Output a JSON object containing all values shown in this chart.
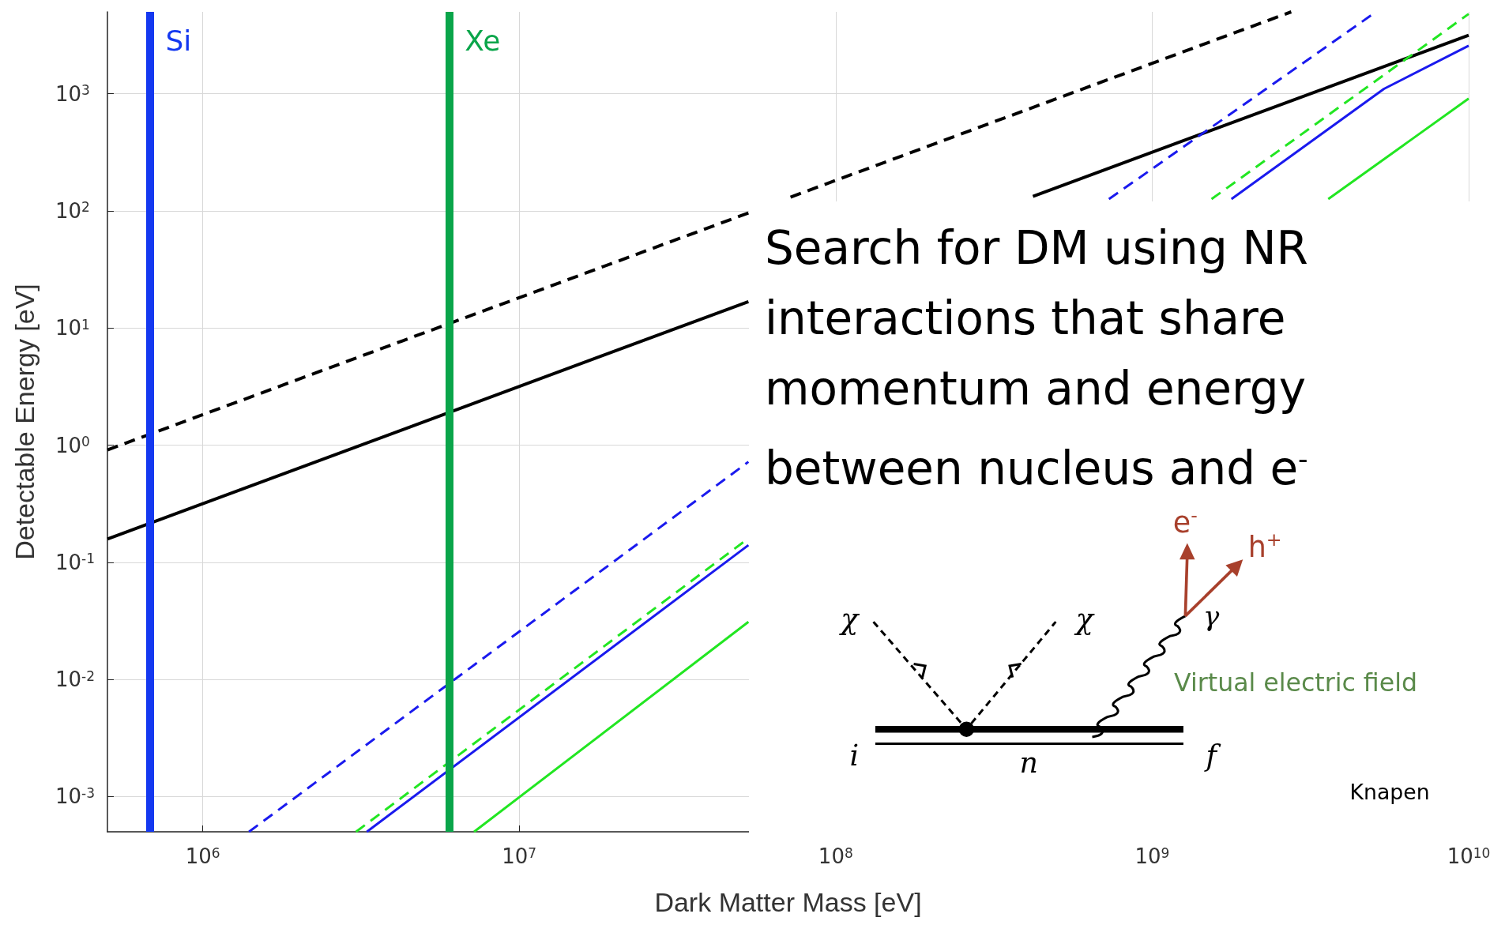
{
  "chart_data": {
    "type": "line",
    "xlabel": "Dark Matter Mass [eV]",
    "ylabel": "Detectable Energy [eV]",
    "log": "xy",
    "grid": true,
    "marker": "none",
    "xlim": [
      500000,
      10000000000
    ],
    "ylim": [
      0.0005,
      5000
    ],
    "xticks": [
      {
        "value": 1000000,
        "label": "10$^{6}$"
      },
      {
        "value": 10000000,
        "label": "10$^{7}$"
      },
      {
        "value": 100000000,
        "label": "10$^{8}$"
      },
      {
        "value": 1000000000,
        "label": "10$^{9}$"
      },
      {
        "value": 10000000000,
        "label": "10$^{10}$"
      }
    ],
    "yticks": [
      {
        "value": 0.001,
        "label": "10$^{-3}$"
      },
      {
        "value": 0.01,
        "label": "10$^{-2}$"
      },
      {
        "value": 0.1,
        "label": "10$^{-1}$"
      },
      {
        "value": 1,
        "label": "10$^{0}$"
      },
      {
        "value": 10,
        "label": "10$^{1}$"
      },
      {
        "value": 100,
        "label": "10$^{2}$"
      },
      {
        "value": 1000,
        "label": "10$^{3}$"
      }
    ],
    "series": [
      {
        "color": "#000000",
        "line_style": "dashed",
        "x": [
          500000,
          53000000,
          62000000,
          72000000,
          2750000000
        ],
        "values": [
          0.91,
          96,
          null,
          131,
          5000
        ]
      },
      {
        "color": "#000000",
        "line_style": "solid",
        "x": [
          500000,
          53000000,
          200000000,
          420000000,
          10000000000
        ],
        "values": [
          0.158,
          16.8,
          null,
          133,
          3160
        ]
      },
      {
        "color": "#1a1aee",
        "line_style": "dashed",
        "x": [
          1400000,
          53000000,
          300000000,
          730000000,
          5100000000
        ],
        "values": [
          0.0005,
          0.72,
          null,
          126,
          5000
        ]
      },
      {
        "color": "#22e622",
        "line_style": "dashed",
        "x": [
          3050000,
          53000000,
          500000000,
          1540000000,
          10000000000
        ],
        "values": [
          0.0005,
          0.16,
          null,
          126,
          4800
        ]
      },
      {
        "color": "#1a1aee",
        "line_style": "solid",
        "x": [
          3300000,
          53000000,
          600000000,
          1780000000,
          5400000000,
          10000000000
        ],
        "values": [
          0.0005,
          0.14,
          null,
          126,
          1100,
          2570
        ]
      },
      {
        "color": "#22e622",
        "line_style": "solid",
        "x": [
          7200000,
          53000000,
          1000000000,
          3600000000,
          10000000000
        ],
        "values": [
          0.0005,
          0.031,
          null,
          126,
          910
        ]
      }
    ],
    "ref_lines": [
      {
        "axis": "x",
        "value": 680000,
        "label": "Si",
        "color": "#1438f0"
      },
      {
        "axis": "x",
        "value": 6000000,
        "label": "Xe",
        "color": "#0aa54a"
      }
    ],
    "annotations": [
      "Search for DM using NR interactions that share momentum and energy between nucleus and e$^{-}$",
      "Knapen",
      "χ",
      "χ",
      "γ",
      "e$^{-}$",
      "h$^{+}$",
      "Virtual electric field",
      "i",
      "n",
      "f"
    ]
  }
}
